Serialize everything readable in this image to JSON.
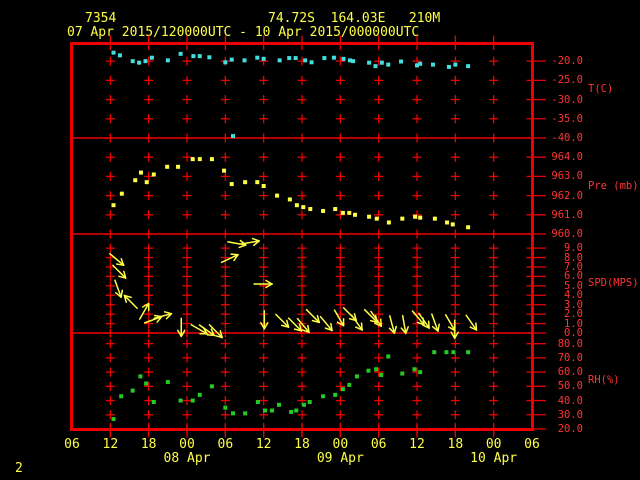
{
  "header": {
    "station_id": "7354",
    "location": "74.72S  164.03E   210M",
    "period": "07 Apr 2015/120000UTC - 10 Apr 2015/000000UTC"
  },
  "page_number": "2",
  "colors": {
    "background": "#000000",
    "red": "#ef0000",
    "red_text": "#ff3333",
    "yellow": "#ffff47",
    "cyan": "#45dede",
    "green": "#22cc22"
  },
  "x_axis": {
    "xlim": [
      6,
      78
    ],
    "ticks": [
      {
        "hour": 6,
        "label": "06"
      },
      {
        "hour": 12,
        "label": "12"
      },
      {
        "hour": 18,
        "label": "18"
      },
      {
        "hour": 24,
        "label": "00"
      },
      {
        "hour": 30,
        "label": "06"
      },
      {
        "hour": 36,
        "label": "12"
      },
      {
        "hour": 42,
        "label": "18"
      },
      {
        "hour": 48,
        "label": "00"
      },
      {
        "hour": 54,
        "label": "06"
      },
      {
        "hour": 60,
        "label": "12"
      },
      {
        "hour": 66,
        "label": "18"
      },
      {
        "hour": 72,
        "label": "00"
      },
      {
        "hour": 78,
        "label": "06"
      }
    ],
    "date_ticks": [
      {
        "hour": 24,
        "label": "08 Apr"
      },
      {
        "hour": 48,
        "label": "09 Apr"
      },
      {
        "hour": 72,
        "label": "10 Apr"
      }
    ]
  },
  "chart_data": [
    {
      "panel": "temperature",
      "type": "scatter",
      "ylabel": "T(C)",
      "color": "cyan",
      "marker": "square",
      "ylim": [
        -40,
        -15.8
      ],
      "y_ticks": [
        {
          "value": -20,
          "label": "-20.0"
        },
        {
          "value": -25,
          "label": "-25.0"
        },
        {
          "value": -30,
          "label": "-30.0"
        },
        {
          "value": -35,
          "label": "-35.0"
        },
        {
          "value": -40,
          "label": "-40.0"
        }
      ],
      "points": [
        [
          12.5,
          -17.8
        ],
        [
          13.5,
          -18.5
        ],
        [
          15.5,
          -20.0
        ],
        [
          16.5,
          -20.4
        ],
        [
          17.5,
          -20.0
        ],
        [
          18.5,
          -19.1
        ],
        [
          21,
          -19.8
        ],
        [
          23,
          -18.1
        ],
        [
          25,
          -18.7
        ],
        [
          26,
          -18.7
        ],
        [
          27.5,
          -19.0
        ],
        [
          30,
          -20.3
        ],
        [
          31,
          -19.6
        ],
        [
          33,
          -19.8
        ],
        [
          35,
          -19.1
        ],
        [
          36,
          -19.4
        ],
        [
          38.5,
          -19.8
        ],
        [
          40,
          -19.2
        ],
        [
          41,
          -19.2
        ],
        [
          42.5,
          -19.8
        ],
        [
          43.5,
          -20.3
        ],
        [
          45.5,
          -19.2
        ],
        [
          47,
          -19.1
        ],
        [
          48.5,
          -19.4
        ],
        [
          49.5,
          -19.8
        ],
        [
          50,
          -20.0
        ],
        [
          52.5,
          -20.4
        ],
        [
          53.5,
          -21.3
        ],
        [
          54.5,
          -20.4
        ],
        [
          55.5,
          -20.9
        ],
        [
          57.5,
          -20.1
        ],
        [
          60,
          -21.1
        ],
        [
          60.5,
          -20.7
        ],
        [
          62.5,
          -20.9
        ],
        [
          65,
          -21.5
        ],
        [
          66,
          -20.9
        ],
        [
          68,
          -21.3
        ],
        [
          31.2,
          -39.5
        ]
      ]
    },
    {
      "panel": "pressure",
      "type": "scatter",
      "ylabel": "Pre (mb)",
      "color": "yellow",
      "marker": "square",
      "ylim": [
        960,
        965
      ],
      "y_ticks": [
        {
          "value": 964,
          "label": "964.0"
        },
        {
          "value": 963,
          "label": "963.0"
        },
        {
          "value": 962,
          "label": "962.0"
        },
        {
          "value": 961,
          "label": "961.0"
        },
        {
          "value": 960,
          "label": "960.0"
        }
      ],
      "points": [
        [
          12.5,
          961.5
        ],
        [
          13.8,
          962.1
        ],
        [
          15.9,
          962.8
        ],
        [
          16.8,
          963.2
        ],
        [
          17.7,
          962.7
        ],
        [
          18.8,
          963.1
        ],
        [
          20.9,
          963.5
        ],
        [
          22.6,
          963.5
        ],
        [
          24.9,
          963.9
        ],
        [
          26,
          963.9
        ],
        [
          27.9,
          963.9
        ],
        [
          29.8,
          963.3
        ],
        [
          31,
          962.6
        ],
        [
          33.1,
          962.7
        ],
        [
          35,
          962.7
        ],
        [
          36,
          962.5
        ],
        [
          38.1,
          962.0
        ],
        [
          40.1,
          961.8
        ],
        [
          41.2,
          961.5
        ],
        [
          42.2,
          961.4
        ],
        [
          43.3,
          961.3
        ],
        [
          45.3,
          961.2
        ],
        [
          47.2,
          961.3
        ],
        [
          48.4,
          961.1
        ],
        [
          49.4,
          961.1
        ],
        [
          50.3,
          961.0
        ],
        [
          52.5,
          960.9
        ],
        [
          53.7,
          960.8
        ],
        [
          55.6,
          960.6
        ],
        [
          57.7,
          960.8
        ],
        [
          59.7,
          960.9
        ],
        [
          60.5,
          960.85
        ],
        [
          62.8,
          960.8
        ],
        [
          64.7,
          960.6
        ],
        [
          65.6,
          960.5
        ],
        [
          68,
          960.35
        ]
      ]
    },
    {
      "panel": "wind-speed",
      "type": "wind-arrows",
      "ylabel": "SPD(MPS)",
      "color": "yellow",
      "ylim": [
        0,
        10.5
      ],
      "y_ticks": [
        {
          "value": 9,
          "label": "9.0"
        },
        {
          "value": 8,
          "label": "8.0"
        },
        {
          "value": 7,
          "label": "7.0"
        },
        {
          "value": 6,
          "label": "6.0"
        },
        {
          "value": 5,
          "label": "5.0"
        },
        {
          "value": 4,
          "label": "4.0"
        },
        {
          "value": 3,
          "label": "3.0"
        },
        {
          "value": 2,
          "label": "2.0"
        },
        {
          "value": 1,
          "label": "1.0"
        },
        {
          "value": 0,
          "label": "0.0"
        }
      ],
      "arrows": [
        [
          13.0,
          7.8,
          40
        ],
        [
          13.4,
          6.5,
          45
        ],
        [
          13.2,
          4.7,
          70
        ],
        [
          15.2,
          3.3,
          -135
        ],
        [
          17.3,
          2.3,
          -60
        ],
        [
          18.7,
          1.4,
          -20
        ],
        [
          20.2,
          1.8,
          -15
        ],
        [
          23.1,
          0.6,
          90
        ],
        [
          25.9,
          0.4,
          30
        ],
        [
          27.1,
          0.3,
          35
        ],
        [
          28.5,
          0.2,
          45
        ],
        [
          30.7,
          7.9,
          -25
        ],
        [
          31.8,
          9.5,
          10
        ],
        [
          33.9,
          9.6,
          -10
        ],
        [
          35.9,
          5.2,
          0
        ],
        [
          36.1,
          1.4,
          90
        ],
        [
          38.9,
          1.3,
          45
        ],
        [
          40.9,
          0.9,
          45
        ],
        [
          42.2,
          0.8,
          50
        ],
        [
          43.7,
          1.8,
          45
        ],
        [
          45.8,
          1.0,
          50
        ],
        [
          47.8,
          1.6,
          60
        ],
        [
          49.5,
          2.0,
          45
        ],
        [
          50.6,
          1.1,
          55
        ],
        [
          52.8,
          1.8,
          45
        ],
        [
          53.6,
          1.5,
          55
        ],
        [
          56.1,
          0.9,
          75
        ],
        [
          58.0,
          0.9,
          80
        ],
        [
          60.2,
          1.6,
          50
        ],
        [
          61.1,
          1.3,
          55
        ],
        [
          62.8,
          1.1,
          70
        ],
        [
          65.2,
          1.1,
          60
        ],
        [
          65.9,
          0.4,
          90
        ],
        [
          68.5,
          1.1,
          55
        ]
      ]
    },
    {
      "panel": "relative-humidity",
      "type": "scatter",
      "ylabel": "RH(%)",
      "color": "green",
      "marker": "square",
      "ylim": [
        20,
        87.5
      ],
      "y_ticks": [
        {
          "value": 80,
          "label": "80.0"
        },
        {
          "value": 70,
          "label": "70.0"
        },
        {
          "value": 60,
          "label": "60.0"
        },
        {
          "value": 50,
          "label": "50.0"
        },
        {
          "value": 40,
          "label": "40.0"
        },
        {
          "value": 30,
          "label": "30.0"
        },
        {
          "value": 20,
          "label": "20.0"
        }
      ],
      "points": [
        [
          12.5,
          27
        ],
        [
          13.7,
          43
        ],
        [
          15.5,
          47
        ],
        [
          16.7,
          57
        ],
        [
          17.6,
          52
        ],
        [
          18.8,
          39
        ],
        [
          21,
          53
        ],
        [
          23,
          40
        ],
        [
          24.9,
          40
        ],
        [
          26,
          44
        ],
        [
          27.9,
          50
        ],
        [
          30,
          35
        ],
        [
          31.2,
          31
        ],
        [
          33.1,
          31
        ],
        [
          35.1,
          39
        ],
        [
          36.2,
          33
        ],
        [
          37.3,
          33
        ],
        [
          38.4,
          37
        ],
        [
          40.3,
          32
        ],
        [
          41.1,
          33
        ],
        [
          42.3,
          37
        ],
        [
          43.2,
          39
        ],
        [
          45.3,
          43
        ],
        [
          47.2,
          44
        ],
        [
          48.4,
          48
        ],
        [
          49.4,
          51
        ],
        [
          50.6,
          57
        ],
        [
          52.4,
          61
        ],
        [
          53.6,
          62
        ],
        [
          54.4,
          58
        ],
        [
          55.5,
          71
        ],
        [
          57.7,
          59
        ],
        [
          59.6,
          62
        ],
        [
          60.5,
          60
        ],
        [
          62.7,
          74
        ],
        [
          64.6,
          74
        ],
        [
          65.7,
          74
        ],
        [
          68,
          74
        ]
      ]
    }
  ]
}
